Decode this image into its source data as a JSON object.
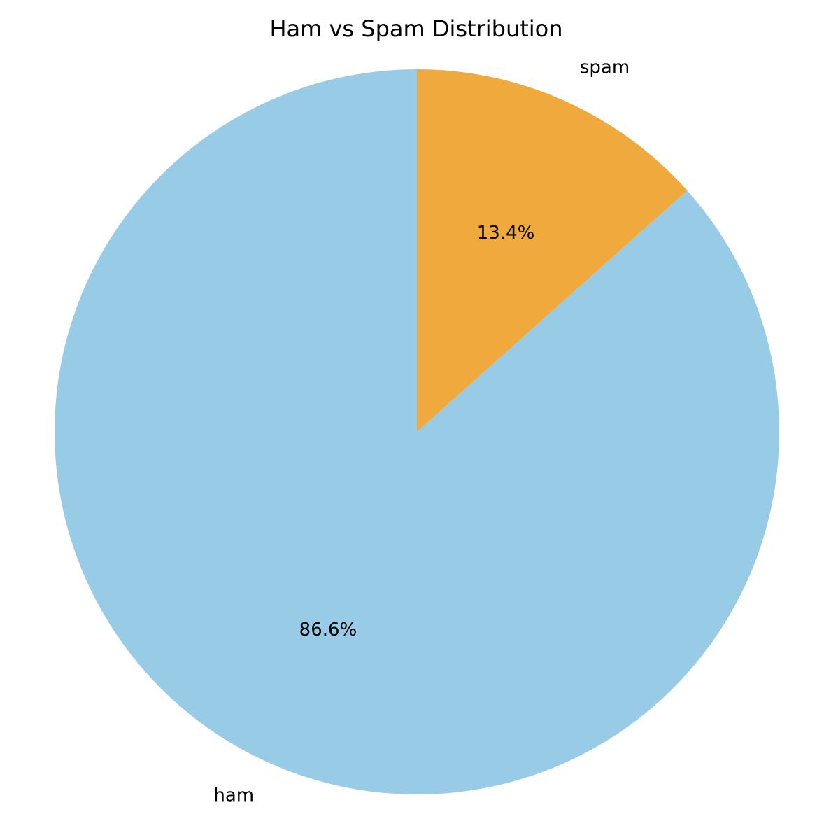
{
  "chart_data": {
    "type": "pie",
    "title": "Ham vs Spam Distribution",
    "start_angle": "top",
    "direction": "counterclockwise",
    "slices": [
      {
        "label": "ham",
        "value": 86.6,
        "percent_label": "86.6%",
        "color": "#98CBE6"
      },
      {
        "label": "spam",
        "value": 13.4,
        "percent_label": "13.4%",
        "color": "#F0A93C"
      }
    ]
  }
}
